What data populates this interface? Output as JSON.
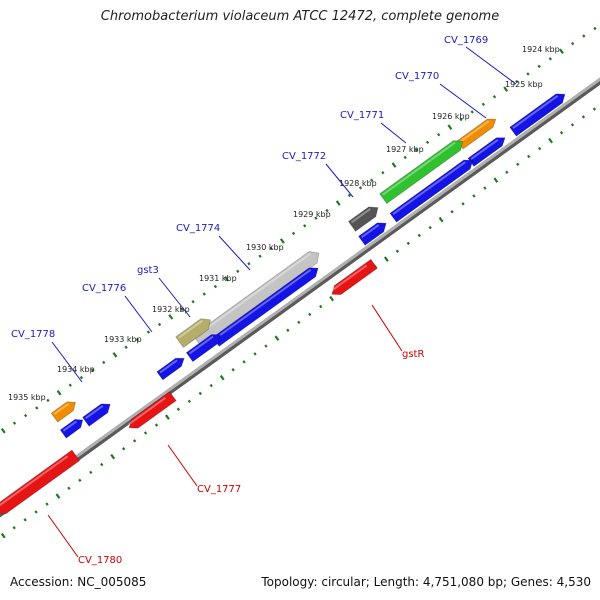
{
  "title": "Chromobacterium violaceum ATCC 12472, complete genome",
  "footer": {
    "accession": "Accession: NC_005085",
    "summary": "Topology: circular; Length: 4,751,080 bp; Genes: 4,530"
  },
  "colors": {
    "forward_label": "#1a1acc",
    "reverse_label": "#cc0000",
    "forward_cds": "#1414e6",
    "reverse_cds": "#e61414",
    "ruler_dots": "#1f7a1f",
    "backbone": "#888888"
  },
  "tick_labels": [
    "1924 kbp",
    "1925 kbp",
    "1926 kbp",
    "1927 kbp",
    "1928 kbp",
    "1929 kbp",
    "1930 kbp",
    "1931 kbp",
    "1932 kbp",
    "1933 kbp",
    "1934 kbp",
    "1935 kbp"
  ],
  "gene_labels": [
    {
      "text": "CV_1769",
      "strand": "forward"
    },
    {
      "text": "CV_1770",
      "strand": "forward"
    },
    {
      "text": "CV_1771",
      "strand": "forward"
    },
    {
      "text": "CV_1772",
      "strand": "forward"
    },
    {
      "text": "CV_1774",
      "strand": "forward"
    },
    {
      "text": "gst3",
      "strand": "forward"
    },
    {
      "text": "CV_1776",
      "strand": "forward"
    },
    {
      "text": "CV_1778",
      "strand": "forward"
    },
    {
      "text": "gstR",
      "strand": "reverse"
    },
    {
      "text": "CV_1777",
      "strand": "reverse"
    },
    {
      "text": "CV_1780",
      "strand": "reverse"
    }
  ]
}
